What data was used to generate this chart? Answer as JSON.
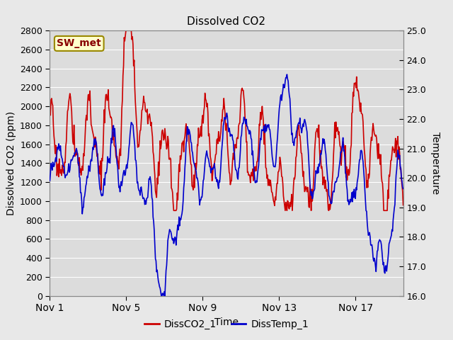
{
  "title": "Dissolved CO2",
  "xlabel": "Time",
  "ylabel_left": "Dissolved CO2 (ppm)",
  "ylabel_right": "Temperature",
  "annotation": "SW_met",
  "legend_labels": [
    "DissCO2_1",
    "DissTemp_1"
  ],
  "co2_color": "#cc0000",
  "temp_color": "#0000cc",
  "ylim_left": [
    0,
    2800
  ],
  "ylim_right": [
    16.0,
    25.0
  ],
  "yticks_left": [
    0,
    200,
    400,
    600,
    800,
    1000,
    1200,
    1400,
    1600,
    1800,
    2000,
    2200,
    2400,
    2600,
    2800
  ],
  "yticks_right": [
    16.0,
    17.0,
    18.0,
    19.0,
    20.0,
    21.0,
    22.0,
    23.0,
    24.0,
    25.0
  ],
  "xtick_labels": [
    "Nov 1",
    "Nov 5",
    "Nov 9",
    "Nov 13",
    "Nov 17"
  ],
  "xtick_positions": [
    0,
    4,
    8,
    12,
    16
  ],
  "bg_color": "#e8e8e8",
  "plot_bg_color": "#dcdcdc",
  "line_width": 1.2,
  "annotation_bg": "#ffffcc",
  "annotation_border": "#998800",
  "annotation_text_color": "#880000",
  "grid_color": "#ffffff",
  "font_size": 10
}
